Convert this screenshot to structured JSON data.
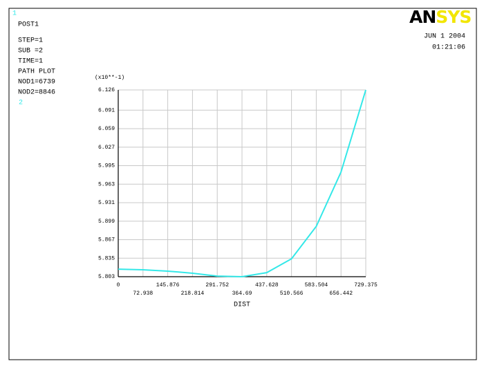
{
  "chart_data": {
    "type": "line",
    "window_number": "1",
    "info_lines": [
      "POST1",
      "STEP=1",
      "SUB =2",
      "TIME=1",
      "PATH PLOT",
      "NOD1=6739",
      "NOD2=8846"
    ],
    "curve_number": "2",
    "logo_parts": [
      "AN",
      "SYS"
    ],
    "date": "JUN  1 2004",
    "time": "01:21:06",
    "y_multiplier": "(x10**-1)",
    "xlabel": "DIST",
    "x": [
      0,
      72.938,
      145.876,
      218.814,
      291.752,
      364.69,
      437.628,
      510.566,
      583.504,
      656.442,
      729.375
    ],
    "series": [
      {
        "color": "#33e8e8",
        "values": [
          5.816,
          5.815,
          5.8126,
          5.809,
          5.804,
          5.803,
          5.81,
          5.834,
          5.89,
          5.984,
          6.126
        ]
      }
    ],
    "xlim": [
      0,
      729.375
    ],
    "xticks": [
      0,
      72.938,
      145.876,
      218.814,
      291.752,
      364.69,
      437.628,
      510.566,
      583.504,
      656.442,
      729.375
    ],
    "ylim": [
      5.803,
      6.126
    ],
    "yticks": [
      5.803,
      5.835,
      5.867,
      5.899,
      5.931,
      5.963,
      5.995,
      6.027,
      6.059,
      6.091,
      6.126
    ],
    "grid": true
  }
}
